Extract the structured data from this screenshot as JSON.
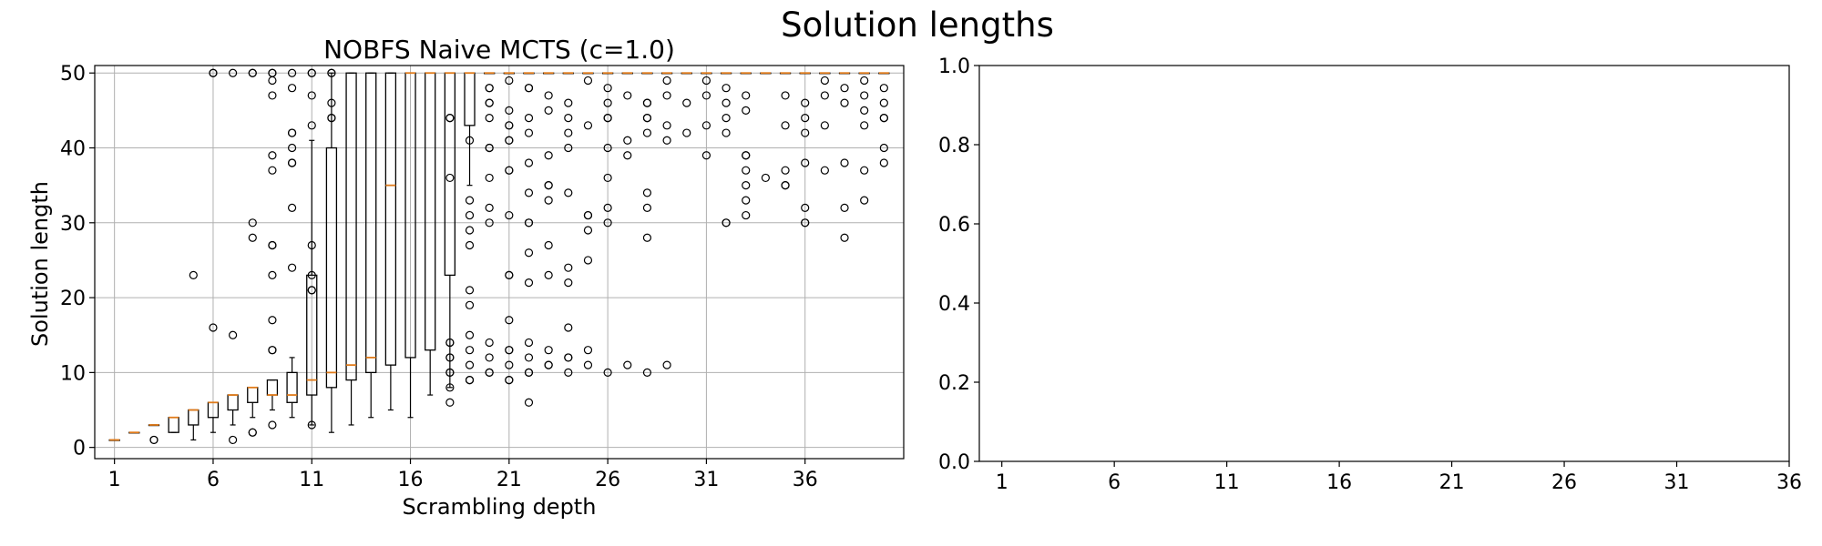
{
  "figure": {
    "suptitle": "Solution lengths"
  },
  "chart_data": [
    {
      "type": "box",
      "title": "NOBFS Naive MCTS (c=1.0)",
      "xlabel": "Scrambling depth",
      "ylabel": "Solution length",
      "xlim": [
        0,
        41
      ],
      "ylim": [
        -1.5,
        51
      ],
      "xticks": [
        1,
        6,
        11,
        16,
        21,
        26,
        31,
        36
      ],
      "yticks": [
        0,
        10,
        20,
        30,
        40,
        50
      ],
      "grid": true,
      "colors": {
        "box": "#000000",
        "median": "#e07b1a",
        "grid": "#b0b0b0"
      },
      "boxes": [
        {
          "x": 1,
          "q1": 1,
          "median": 1,
          "q3": 1,
          "whislo": 1,
          "whishi": 1,
          "fliers": []
        },
        {
          "x": 2,
          "q1": 2,
          "median": 2,
          "q3": 2,
          "whislo": 2,
          "whishi": 2,
          "fliers": []
        },
        {
          "x": 3,
          "q1": 3,
          "median": 3,
          "q3": 3,
          "whislo": 3,
          "whishi": 3,
          "fliers": [
            1,
            1
          ]
        },
        {
          "x": 4,
          "q1": 2,
          "median": 4,
          "q3": 4,
          "whislo": 2,
          "whishi": 4,
          "fliers": []
        },
        {
          "x": 5,
          "q1": 3,
          "median": 5,
          "q3": 5,
          "whislo": 1,
          "whishi": 5,
          "fliers": [
            23
          ]
        },
        {
          "x": 6,
          "q1": 4,
          "median": 6,
          "q3": 6,
          "whislo": 2,
          "whishi": 6,
          "fliers": [
            16,
            50,
            50
          ]
        },
        {
          "x": 7,
          "q1": 5,
          "median": 7,
          "q3": 7,
          "whislo": 3,
          "whishi": 7,
          "fliers": [
            1,
            15,
            50
          ]
        },
        {
          "x": 8,
          "q1": 6,
          "median": 8,
          "q3": 8,
          "whislo": 4,
          "whishi": 8,
          "fliers": [
            2,
            2,
            28,
            30,
            50,
            50
          ]
        },
        {
          "x": 9,
          "q1": 7,
          "median": 7,
          "q3": 9,
          "whislo": 5,
          "whishi": 9,
          "fliers": [
            3,
            13,
            13,
            17,
            23,
            27,
            27,
            37,
            39,
            47,
            49,
            50,
            50
          ]
        },
        {
          "x": 10,
          "q1": 6,
          "median": 7,
          "q3": 10,
          "whislo": 4,
          "whishi": 12,
          "fliers": [
            24,
            32,
            38,
            38,
            40,
            42,
            42,
            48,
            50
          ]
        },
        {
          "x": 11,
          "q1": 7,
          "median": 9,
          "q3": 23,
          "whislo": 3,
          "whishi": 41,
          "fliers": [
            3,
            21,
            21,
            23,
            27,
            43,
            47,
            50,
            50
          ]
        },
        {
          "x": 12,
          "q1": 8,
          "median": 10,
          "q3": 40,
          "whislo": 2,
          "whishi": 50,
          "fliers": [
            44,
            44,
            46,
            50,
            50
          ]
        },
        {
          "x": 13,
          "q1": 9,
          "median": 11,
          "q3": 50,
          "whislo": 3,
          "whishi": 50,
          "fliers": []
        },
        {
          "x": 14,
          "q1": 10,
          "median": 12,
          "q3": 50,
          "whislo": 4,
          "whishi": 50,
          "fliers": []
        },
        {
          "x": 15,
          "q1": 11,
          "median": 35,
          "q3": 50,
          "whislo": 5,
          "whishi": 50,
          "fliers": []
        },
        {
          "x": 16,
          "q1": 12,
          "median": 50,
          "q3": 50,
          "whislo": 4,
          "whishi": 50,
          "fliers": []
        },
        {
          "x": 17,
          "q1": 13,
          "median": 50,
          "q3": 50,
          "whislo": 7,
          "whishi": 50,
          "fliers": []
        },
        {
          "x": 18,
          "q1": 23,
          "median": 50,
          "q3": 50,
          "whislo": 8,
          "whishi": 50,
          "fliers": [
            6,
            8,
            10,
            10,
            12,
            12,
            14,
            14,
            36,
            44,
            44
          ]
        },
        {
          "x": 19,
          "q1": 43,
          "median": 50,
          "q3": 50,
          "whislo": 35,
          "whishi": 50,
          "fliers": [
            9,
            9,
            11,
            13,
            15,
            19,
            21,
            27,
            29,
            31,
            33,
            41
          ]
        },
        {
          "x": 20,
          "q1": 50,
          "median": 50,
          "q3": 50,
          "whislo": 50,
          "whishi": 50,
          "fliers": [
            10,
            10,
            12,
            14,
            30,
            32,
            36,
            40,
            40,
            44,
            46,
            46,
            48,
            48
          ]
        },
        {
          "x": 21,
          "q1": 50,
          "median": 50,
          "q3": 50,
          "whislo": 50,
          "whishi": 50,
          "fliers": [
            9,
            9,
            11,
            13,
            13,
            17,
            23,
            23,
            31,
            37,
            37,
            41,
            41,
            43,
            43,
            45,
            49
          ]
        },
        {
          "x": 22,
          "q1": 50,
          "median": 50,
          "q3": 50,
          "whislo": 50,
          "whishi": 50,
          "fliers": [
            6,
            10,
            10,
            12,
            14,
            22,
            26,
            30,
            30,
            34,
            38,
            42,
            44,
            48,
            48
          ]
        },
        {
          "x": 23,
          "q1": 50,
          "median": 50,
          "q3": 50,
          "whislo": 50,
          "whishi": 50,
          "fliers": [
            11,
            11,
            13,
            23,
            27,
            33,
            35,
            35,
            39,
            45,
            47
          ]
        },
        {
          "x": 24,
          "q1": 50,
          "median": 50,
          "q3": 50,
          "whislo": 50,
          "whishi": 50,
          "fliers": [
            10,
            12,
            12,
            16,
            22,
            24,
            34,
            40,
            42,
            44,
            46
          ]
        },
        {
          "x": 25,
          "q1": 50,
          "median": 50,
          "q3": 50,
          "whislo": 50,
          "whishi": 50,
          "fliers": [
            11,
            13,
            25,
            29,
            31,
            31,
            43,
            49
          ]
        },
        {
          "x": 26,
          "q1": 50,
          "median": 50,
          "q3": 50,
          "whislo": 50,
          "whishi": 50,
          "fliers": [
            10,
            30,
            32,
            36,
            40,
            44,
            44,
            46,
            48
          ]
        },
        {
          "x": 27,
          "q1": 50,
          "median": 50,
          "q3": 50,
          "whislo": 50,
          "whishi": 50,
          "fliers": [
            11,
            39,
            41,
            47
          ]
        },
        {
          "x": 28,
          "q1": 50,
          "median": 50,
          "q3": 50,
          "whislo": 50,
          "whishi": 50,
          "fliers": [
            10,
            28,
            32,
            34,
            42,
            44,
            44,
            46,
            46
          ]
        },
        {
          "x": 29,
          "q1": 50,
          "median": 50,
          "q3": 50,
          "whislo": 50,
          "whishi": 50,
          "fliers": [
            11,
            41,
            43,
            47,
            49
          ]
        },
        {
          "x": 30,
          "q1": 50,
          "median": 50,
          "q3": 50,
          "whislo": 50,
          "whishi": 50,
          "fliers": [
            42,
            46
          ]
        },
        {
          "x": 31,
          "q1": 50,
          "median": 50,
          "q3": 50,
          "whislo": 50,
          "whishi": 50,
          "fliers": [
            39,
            43,
            47,
            49
          ]
        },
        {
          "x": 32,
          "q1": 50,
          "median": 50,
          "q3": 50,
          "whislo": 50,
          "whishi": 50,
          "fliers": [
            30,
            30,
            42,
            44,
            46,
            48
          ]
        },
        {
          "x": 33,
          "q1": 50,
          "median": 50,
          "q3": 50,
          "whislo": 50,
          "whishi": 50,
          "fliers": [
            31,
            33,
            35,
            37,
            39,
            39,
            45,
            47
          ]
        },
        {
          "x": 34,
          "q1": 50,
          "median": 50,
          "q3": 50,
          "whislo": 50,
          "whishi": 50,
          "fliers": [
            36
          ]
        },
        {
          "x": 35,
          "q1": 50,
          "median": 50,
          "q3": 50,
          "whislo": 50,
          "whishi": 50,
          "fliers": [
            35,
            35,
            37,
            43,
            47
          ]
        },
        {
          "x": 36,
          "q1": 50,
          "median": 50,
          "q3": 50,
          "whislo": 50,
          "whishi": 50,
          "fliers": [
            30,
            30,
            32,
            38,
            42,
            44,
            46
          ]
        },
        {
          "x": 37,
          "q1": 50,
          "median": 50,
          "q3": 50,
          "whislo": 50,
          "whishi": 50,
          "fliers": [
            37,
            43,
            47,
            49
          ]
        },
        {
          "x": 38,
          "q1": 50,
          "median": 50,
          "q3": 50,
          "whislo": 50,
          "whishi": 50,
          "fliers": [
            28,
            32,
            38,
            46,
            48
          ]
        },
        {
          "x": 39,
          "q1": 50,
          "median": 50,
          "q3": 50,
          "whislo": 50,
          "whishi": 50,
          "fliers": [
            33,
            37,
            43,
            45,
            47,
            49
          ]
        },
        {
          "x": 40,
          "q1": 50,
          "median": 50,
          "q3": 50,
          "whislo": 50,
          "whishi": 50,
          "fliers": [
            38,
            40,
            44,
            44,
            46,
            48
          ]
        }
      ]
    },
    {
      "type": "empty",
      "title": "",
      "xlabel": "",
      "ylabel": "",
      "xlim": [
        0,
        36
      ],
      "ylim": [
        0,
        1
      ],
      "xticks": [
        1,
        6,
        11,
        16,
        21,
        26,
        31,
        36
      ],
      "yticks": [
        "0.0",
        "0.2",
        "0.4",
        "0.6",
        "0.8",
        "1.0"
      ],
      "grid": false
    }
  ]
}
